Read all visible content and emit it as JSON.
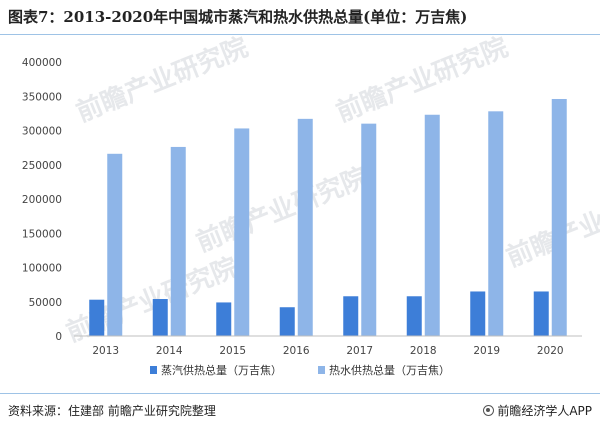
{
  "header": {
    "title": "图表7：2013-2020年中国城市蒸汽和热水供热总量(单位：万吉焦)"
  },
  "footer": {
    "source": "资料来源：住建部 前瞻产业研究院整理",
    "brand": "前瞻经济学人APP"
  },
  "watermark": {
    "text": "前瞻产业研究院"
  },
  "chart_data": {
    "type": "bar",
    "title": "",
    "xlabel": "",
    "ylabel": "",
    "categories": [
      "2013",
      "2014",
      "2015",
      "2016",
      "2017",
      "2018",
      "2019",
      "2020"
    ],
    "series": [
      {
        "name": "蒸汽供热总量（万吉焦）",
        "color": "#3d7ed8",
        "values": [
          53000,
          54000,
          49000,
          42000,
          58000,
          58000,
          65000,
          65000
        ]
      },
      {
        "name": "热水供热总量（万吉焦）",
        "color": "#8eb5e8",
        "values": [
          266000,
          276000,
          303000,
          317000,
          310000,
          323000,
          328000,
          346000
        ]
      }
    ],
    "ylim": [
      0,
      400000
    ],
    "yticks": [
      "0",
      "50000",
      "100000",
      "150000",
      "200000",
      "250000",
      "300000",
      "350000",
      "400000"
    ],
    "grid": false,
    "legend_position": "bottom"
  }
}
